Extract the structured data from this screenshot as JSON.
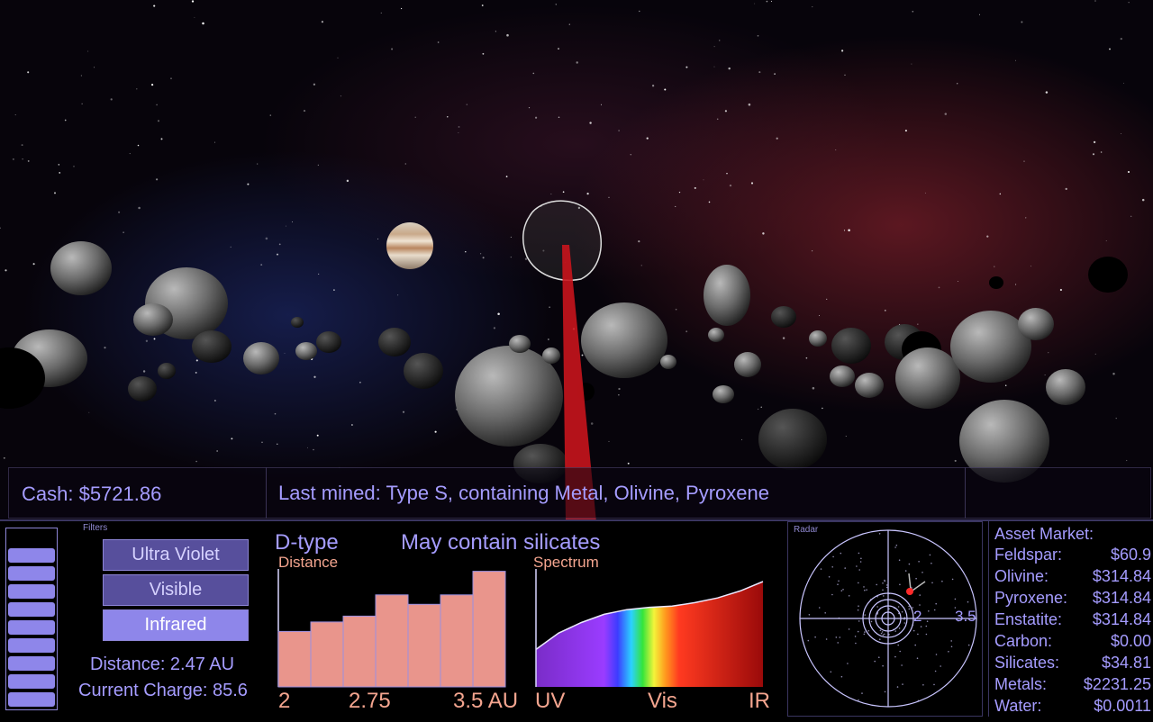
{
  "status": {
    "cash": "Cash: $5721.86",
    "last_mined": "Last mined: Type S, containing Metal, Olivine, Pyroxene"
  },
  "filters": {
    "title": "Filters",
    "buttons": [
      {
        "label": "Ultra Violet",
        "active": false
      },
      {
        "label": "Visible",
        "active": false
      },
      {
        "label": "Infrared",
        "active": true
      }
    ],
    "distance": "Distance: 2.47 AU",
    "charge": "Current Charge: 85.6",
    "charge_cells_filled": 9,
    "charge_cells_total": 10
  },
  "analysis": {
    "type_label": "D-type",
    "description": "May contain silicates",
    "distance_title": "Distance",
    "spectrum_title": "Spectrum",
    "distance_ticks": [
      "2",
      "2.75",
      "3.5 AU"
    ],
    "spectrum_ticks": [
      "UV",
      "Vis",
      "IR"
    ]
  },
  "chart_data": [
    {
      "type": "bar",
      "title": "Distance",
      "categories": [
        "1",
        "2",
        "3",
        "4",
        "5",
        "6",
        "7"
      ],
      "values": [
        0.47,
        0.55,
        0.6,
        0.78,
        0.7,
        0.78,
        0.98
      ],
      "ylim": [
        0,
        1
      ],
      "xlabel": "",
      "ylabel": "",
      "color": "#e9958c"
    },
    {
      "type": "area",
      "title": "Spectrum",
      "x": [
        0,
        0.1,
        0.2,
        0.3,
        0.4,
        0.5,
        0.6,
        0.7,
        0.8,
        0.9,
        1.0
      ],
      "values": [
        0.32,
        0.46,
        0.55,
        0.62,
        0.66,
        0.68,
        0.69,
        0.72,
        0.76,
        0.82,
        0.9
      ],
      "ylim": [
        0,
        1
      ],
      "xlabel": "",
      "ylabel": ""
    }
  ],
  "radar": {
    "title": "Radar",
    "labels": [
      "2",
      "3.5"
    ]
  },
  "market": {
    "title": "Asset Market:",
    "items": [
      {
        "name": "Feldspar:",
        "price": "$60.9"
      },
      {
        "name": "Olivine:",
        "price": "$314.84"
      },
      {
        "name": "Pyroxene:",
        "price": "$314.84"
      },
      {
        "name": "Enstatite:",
        "price": "$314.84"
      },
      {
        "name": "Carbon:",
        "price": "$0.00"
      },
      {
        "name": "Silicates:",
        "price": "$34.81"
      },
      {
        "name": "Metals:",
        "price": "$2231.25"
      },
      {
        "name": "Water:",
        "price": "$0.0011"
      }
    ]
  },
  "colors": {
    "hud_text": "#a59cff",
    "chart_text": "#f4a58f",
    "button": "#574f9c",
    "button_active": "#8e86ea",
    "laser": "#c8141c"
  }
}
